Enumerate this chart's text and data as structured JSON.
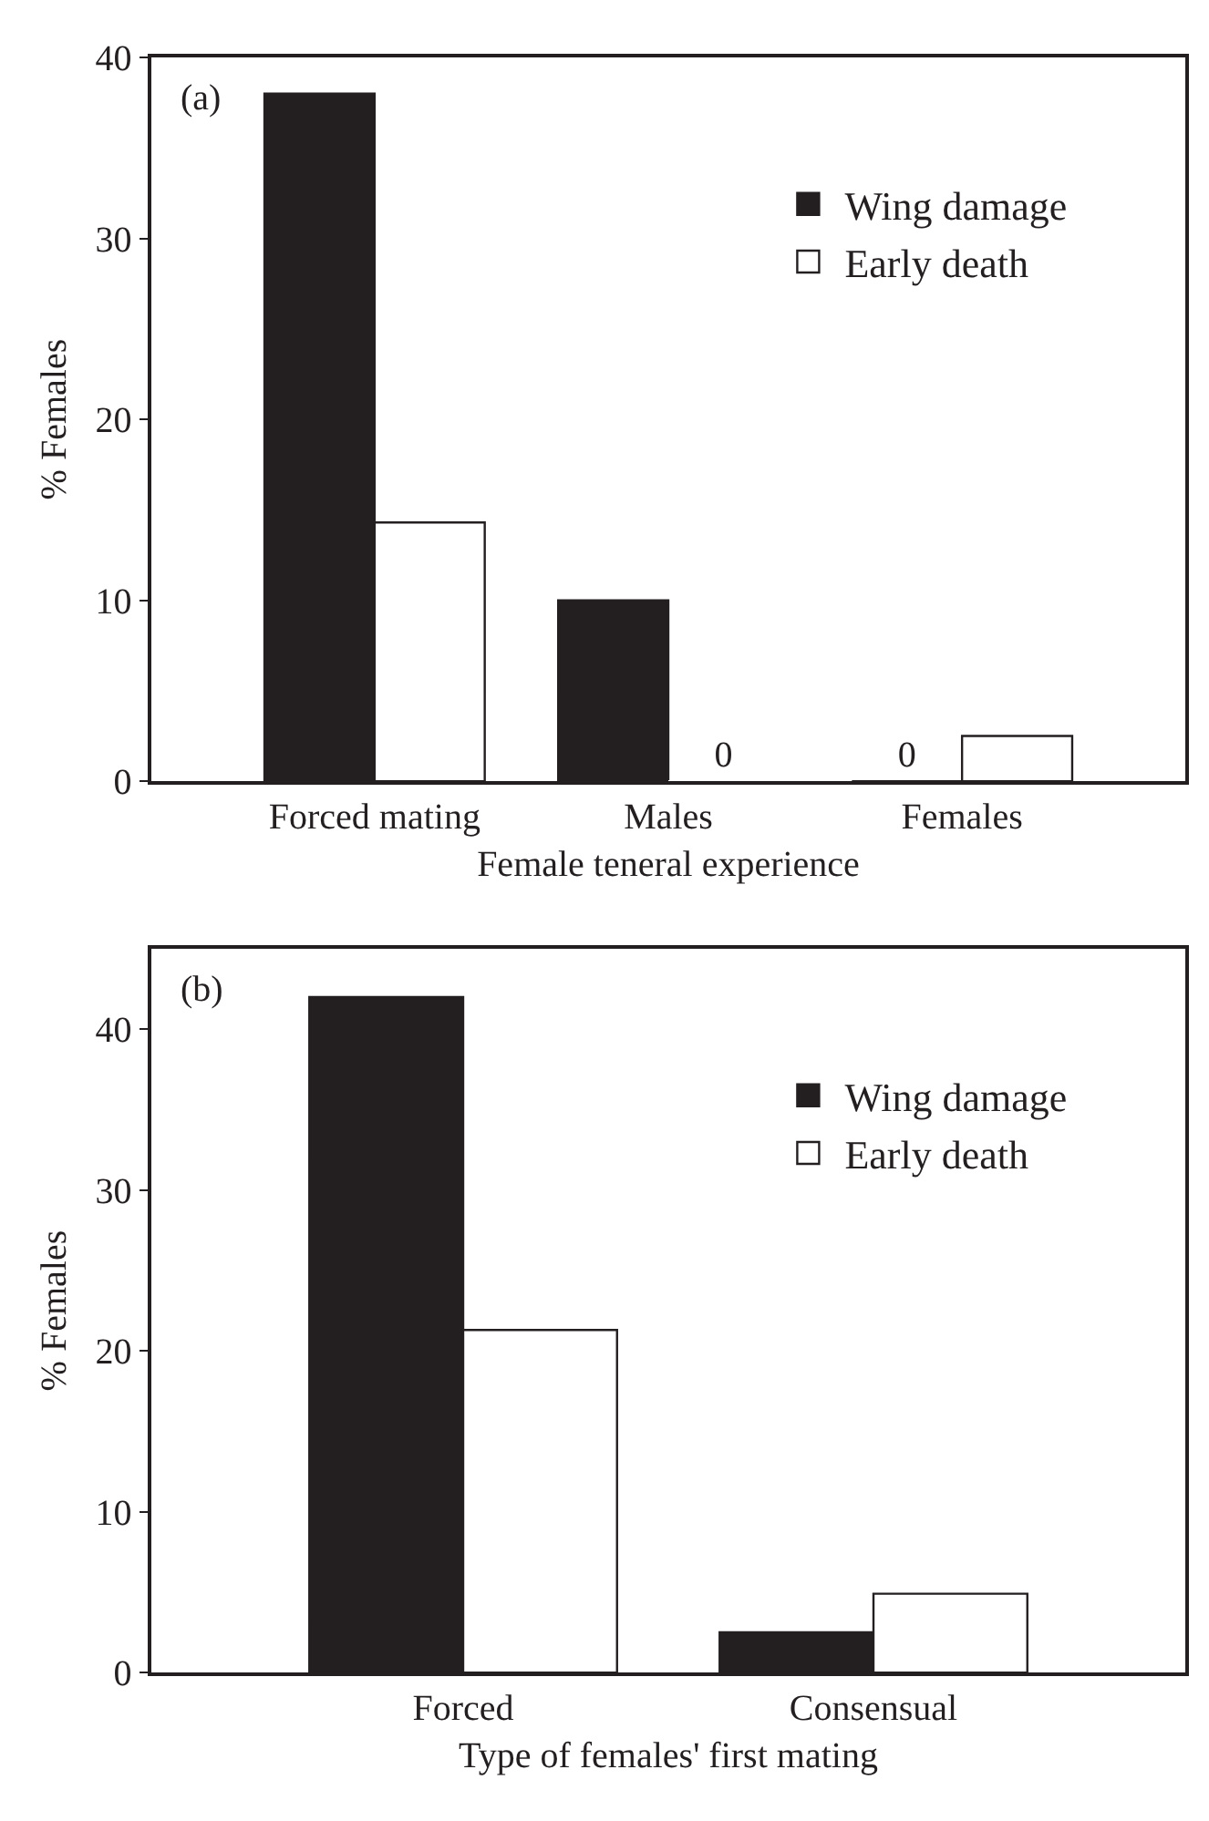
{
  "chart_data": [
    {
      "type": "bar",
      "title": "(a)",
      "xlabel": "Female teneral experience",
      "ylabel": "% Females",
      "categories": [
        "Forced mating",
        "Males",
        "Females"
      ],
      "series": [
        {
          "name": "Wing damage",
          "color": "#231f20",
          "values": [
            38,
            10,
            0
          ],
          "value_labels": [
            null,
            null,
            "0"
          ]
        },
        {
          "name": "Early death",
          "color": "#ffffff",
          "values": [
            14.3,
            0,
            2.5
          ],
          "value_labels": [
            null,
            "0",
            null
          ]
        }
      ],
      "ylim": [
        0,
        40
      ],
      "yticks": [
        0,
        10,
        20,
        30,
        40
      ],
      "legend": "top right"
    },
    {
      "type": "bar",
      "title": "(b)",
      "xlabel": "Type of females' first mating",
      "ylabel": "% Females",
      "categories": [
        "Forced",
        "Consensual"
      ],
      "series": [
        {
          "name": "Wing damage",
          "color": "#231f20",
          "values": [
            42,
            2.5
          ]
        },
        {
          "name": "Early death",
          "color": "#ffffff",
          "values": [
            21.3,
            4.9
          ]
        }
      ],
      "ylim": [
        0,
        45
      ],
      "yticks": [
        0,
        10,
        20,
        30,
        40
      ],
      "legend": "top right"
    }
  ]
}
